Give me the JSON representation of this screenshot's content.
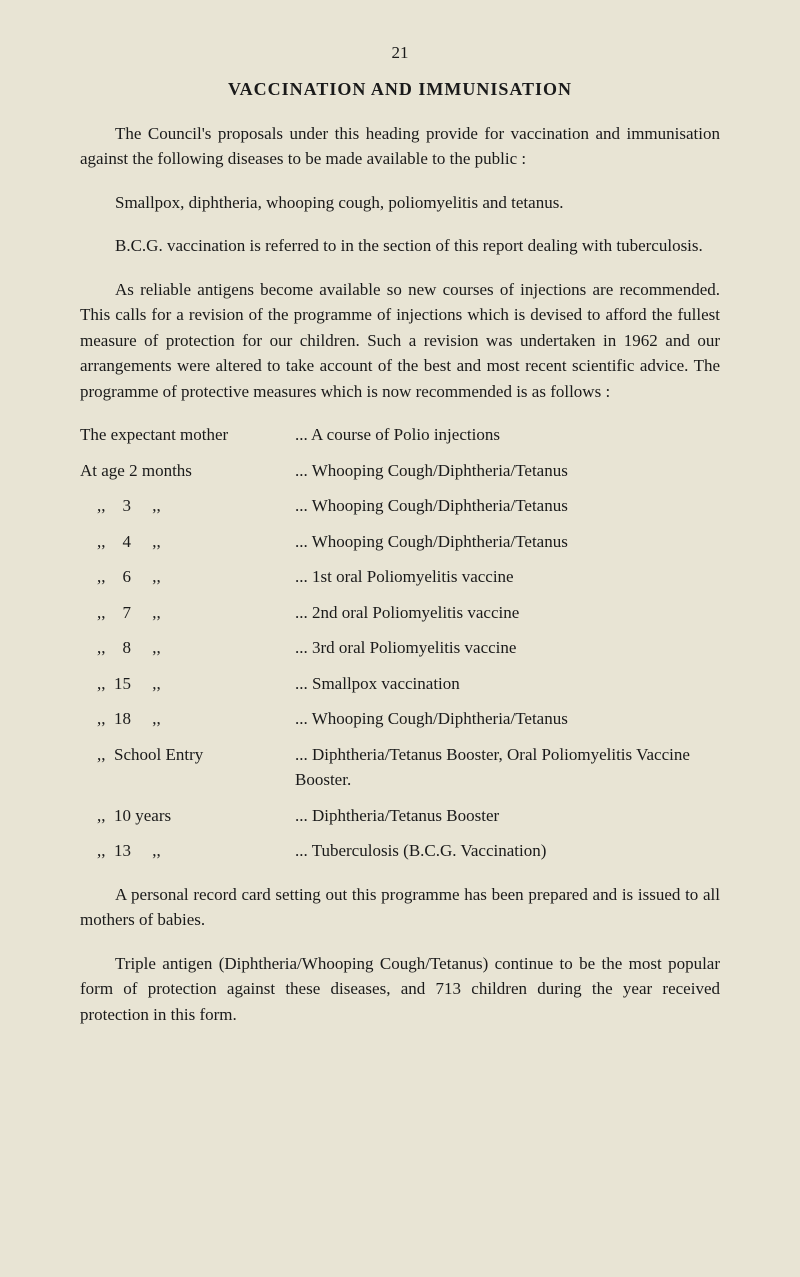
{
  "page_number": "21",
  "title": "VACCINATION AND IMMUNISATION",
  "para1": "The Council's proposals under this heading provide for vaccin­ation and immunisation against the following diseases to be made available to the public :",
  "para2": "Smallpox, diphtheria, whooping cough, poliomyelitis and tetanus.",
  "para3": "B.C.G. vaccination is referred to in the section of this report dealing with tuberculosis.",
  "para4": "As reliable antigens become available so new courses of injections are recommended. This calls for a revision of the programme of injections which is devised to afford the fullest measure of protection for our children. Such a revision was undertaken in 1962 and our arrangements were altered to take account of the best and most recent scientific advice. The programme of protective measures which is now recommended is as follows :",
  "schedule": [
    {
      "left": "The expectant mother",
      "right": "... A course of Polio injections"
    },
    {
      "left": "At age 2 months",
      "right": "... Whooping Cough/Diphtheria/Tetanus"
    },
    {
      "left": "    ,,    3     ,,",
      "right": "... Whooping Cough/Diphtheria/Tetanus"
    },
    {
      "left": "    ,,    4     ,,",
      "right": "... Whooping Cough/Diphtheria/Tetanus"
    },
    {
      "left": "    ,,    6     ,,",
      "right": "... 1st oral Poliomyelitis vaccine"
    },
    {
      "left": "    ,,    7     ,,",
      "right": "... 2nd oral Poliomyelitis vaccine"
    },
    {
      "left": "    ,,    8     ,,",
      "right": "... 3rd oral Poliomyelitis vaccine"
    },
    {
      "left": "    ,,  15     ,,",
      "right": "... Smallpox vaccination"
    },
    {
      "left": "    ,,  18     ,,",
      "right": "... Whooping Cough/Diphtheria/Tetanus"
    },
    {
      "left": "    ,,  School Entry",
      "right": "... Diphtheria/Tetanus Booster, Oral Polio­myelitis Vaccine Booster."
    },
    {
      "left": "    ,,  10 years",
      "right": "... Diphtheria/Tetanus Booster"
    },
    {
      "left": "    ,,  13     ,,",
      "right": "... Tuberculosis (B.C.G. Vaccination)"
    }
  ],
  "para5": "A personal record card setting out this programme has been prepared and is issued to all mothers of babies.",
  "para6": "Triple antigen (Diphtheria/Whooping Cough/Tetanus) continue to be the most popular form of protection against these diseases, and 713 children during the year received protection in this form."
}
